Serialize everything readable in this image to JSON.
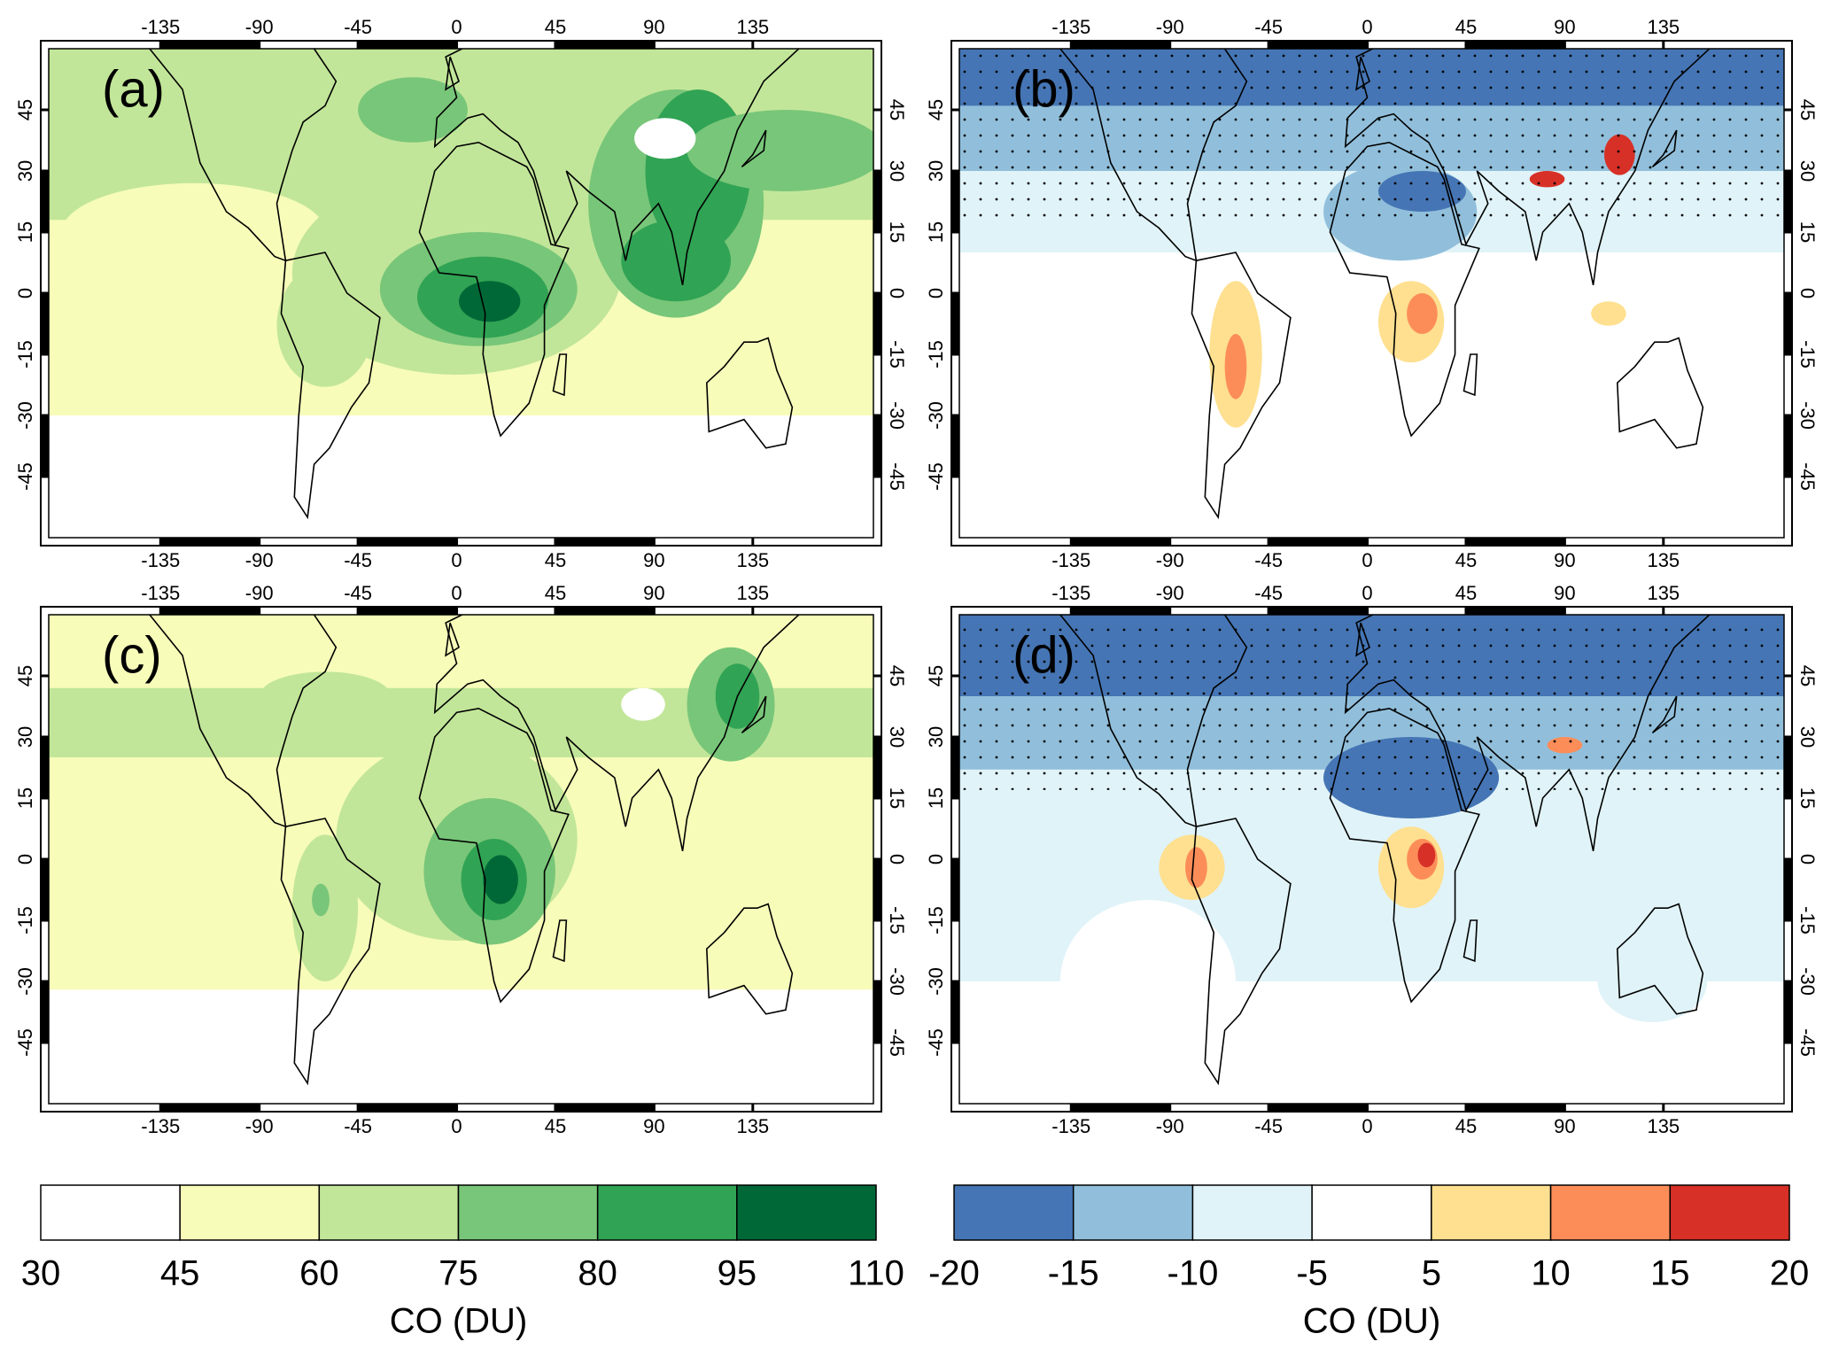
{
  "panels": [
    {
      "label": "(a)",
      "xticks": [
        -135,
        -90,
        -45,
        0,
        45,
        90,
        135
      ],
      "yticks": [
        -45,
        -30,
        -15,
        0,
        15,
        30,
        45
      ],
      "xlim": [
        -186,
        190
      ],
      "ylim": [
        -60,
        60
      ]
    },
    {
      "label": "(b)",
      "xticks": [
        -135,
        -90,
        -45,
        0,
        45,
        90,
        135
      ],
      "yticks": [
        -45,
        -30,
        -15,
        0,
        15,
        30,
        45
      ],
      "xlim": [
        -186,
        190
      ],
      "ylim": [
        -60,
        60
      ]
    },
    {
      "label": "(c)",
      "xticks": [
        -135,
        -90,
        -45,
        0,
        45,
        90,
        135
      ],
      "yticks": [
        -45,
        -30,
        -15,
        0,
        15,
        30,
        45
      ],
      "xlim": [
        -186,
        190
      ],
      "ylim": [
        -60,
        60
      ]
    },
    {
      "label": "(d)",
      "xticks": [
        -135,
        -90,
        -45,
        0,
        45,
        90,
        135
      ],
      "yticks": [
        -45,
        -30,
        -15,
        0,
        15,
        30,
        45
      ],
      "xlim": [
        -186,
        190
      ],
      "ylim": [
        -60,
        60
      ]
    }
  ],
  "colorbars": [
    {
      "levels": [
        30,
        45,
        60,
        75,
        80,
        95,
        110
      ],
      "colors": [
        "#ffffff",
        "#f7fcb9",
        "#c2e699",
        "#78c679",
        "#31a354",
        "#006837"
      ],
      "xlabel": "CO (DU)"
    },
    {
      "levels": [
        -20,
        -15,
        -10,
        -5,
        5,
        10,
        15,
        20
      ],
      "colors": [
        "#4575b4",
        "#91bfdb",
        "#e0f3f8",
        "#ffffff",
        "#fee090",
        "#fc8d59",
        "#d73027"
      ],
      "xlabel": "CO (DU)"
    }
  ]
}
